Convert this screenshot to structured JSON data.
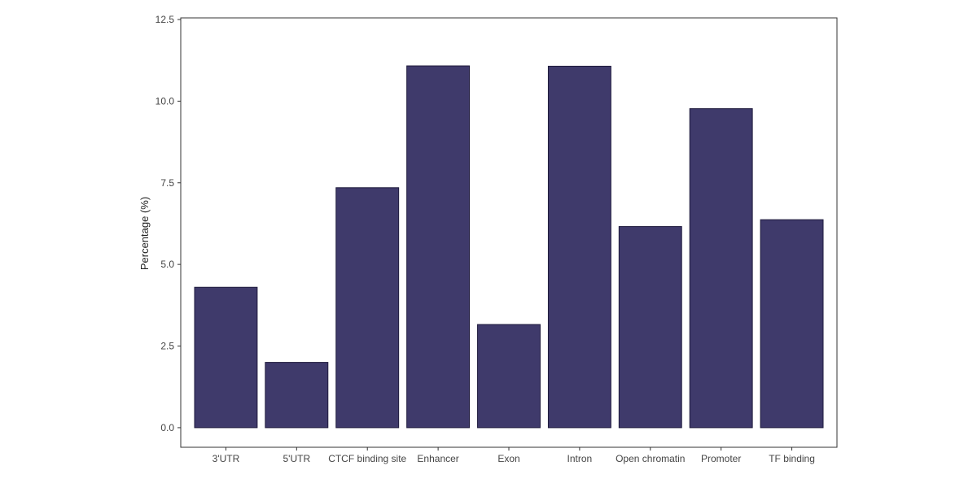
{
  "chart_data": {
    "type": "bar",
    "title": "",
    "xlabel": "",
    "ylabel": "Percentage (%)",
    "categories": [
      "3'UTR",
      "5'UTR",
      "CTCF binding site",
      "Enhancer",
      "Exon",
      "Intron",
      "Open chromatin",
      "Promoter",
      "TF binding"
    ],
    "values": [
      4.3,
      2.0,
      7.35,
      11.08,
      3.16,
      11.07,
      6.16,
      9.77,
      6.37
    ],
    "ylim": [
      -0.6,
      12.55
    ],
    "yticks": [
      0.0,
      2.5,
      5.0,
      7.5,
      10.0,
      12.5
    ],
    "ytick_labels": [
      "0.0",
      "2.5",
      "5.0",
      "7.5",
      "10.0",
      "12.5"
    ],
    "grid": false,
    "legend": "none",
    "bar_color": "#3f3a6b",
    "bar_edge_color": "#1e1a3c",
    "axis_color": "#333333",
    "text_color": "#444444"
  }
}
